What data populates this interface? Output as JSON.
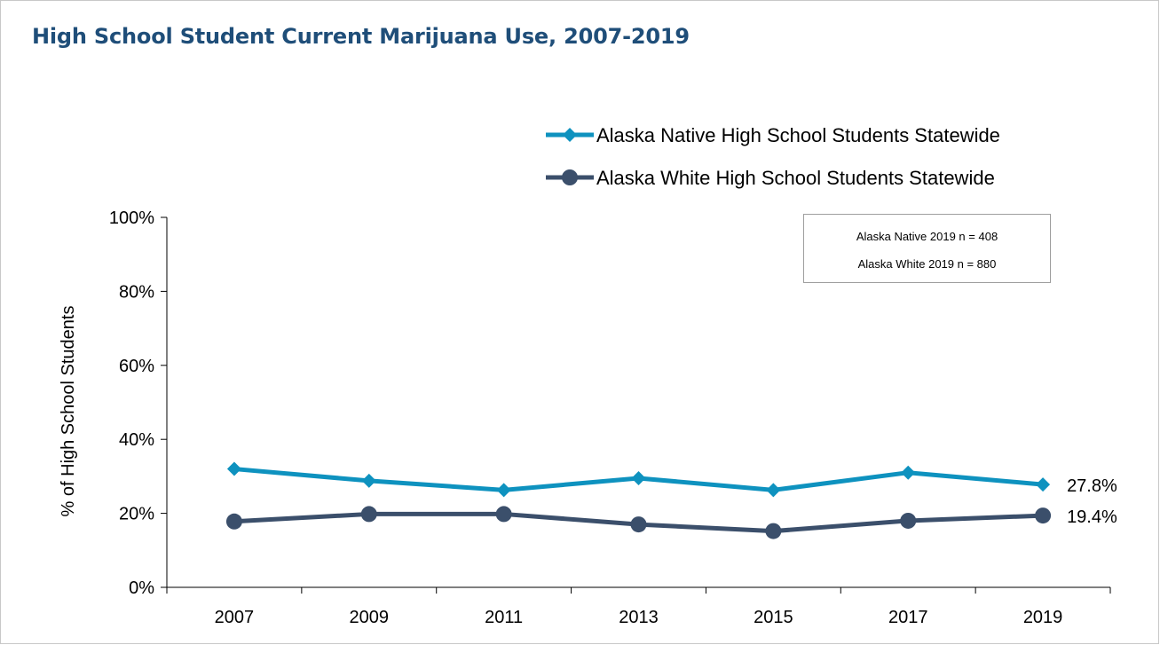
{
  "title": "High School Student Current Marijuana Use, 2007-2019",
  "note": {
    "line1": "Alaska Native 2019 n = 408",
    "line2": "Alaska White 2019 n = 880"
  },
  "colors": {
    "series1": "#0e92bf",
    "series2": "#3b4f6b",
    "title": "#1f4e79"
  },
  "chart_data": {
    "type": "line",
    "title": "High School Student Current Marijuana Use, 2007-2019",
    "xlabel": "",
    "ylabel": "% of High School Students",
    "categories": [
      "2007",
      "2009",
      "2011",
      "2013",
      "2015",
      "2017",
      "2019"
    ],
    "ylim": [
      0,
      100
    ],
    "yticks": [
      "0%",
      "20%",
      "40%",
      "60%",
      "80%",
      "100%"
    ],
    "grid": false,
    "legend_position": "top-right",
    "series": [
      {
        "name": "Alaska Native High School Students Statewide",
        "marker": "diamond",
        "color": "#0e92bf",
        "values": [
          32.0,
          28.8,
          26.3,
          29.5,
          26.3,
          31.0,
          27.8
        ],
        "end_label": "27.8%"
      },
      {
        "name": "Alaska White High School Students Statewide",
        "marker": "circle",
        "color": "#3b4f6b",
        "values": [
          17.8,
          19.8,
          19.8,
          17.0,
          15.2,
          18.0,
          19.4
        ],
        "end_label": "19.4%"
      }
    ]
  }
}
